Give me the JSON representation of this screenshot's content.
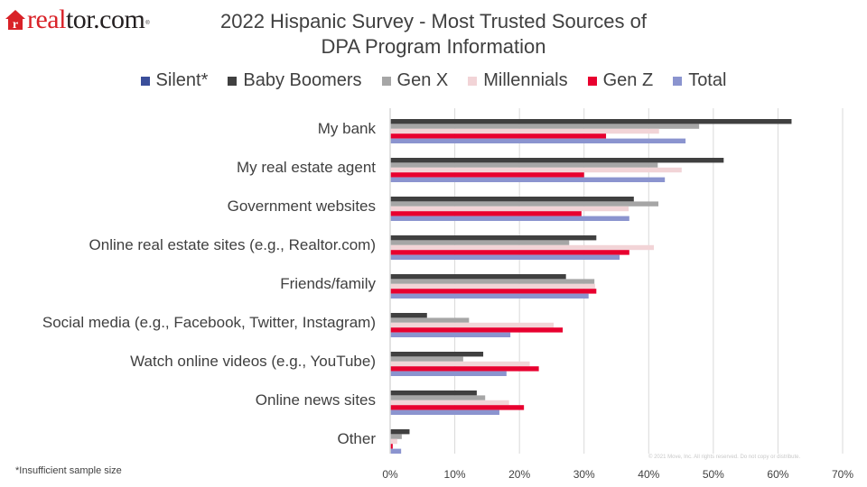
{
  "brand": {
    "logo_red": "real",
    "logo_black": "tor.com",
    "logo_house_letter": "r",
    "logo_color": "#d92228"
  },
  "footnote": "*Insufficient sample size",
  "watermark": "© 2021 Move, Inc. All rights reserved. Do not copy or distribute.",
  "chart_data": {
    "type": "bar",
    "orientation": "horizontal",
    "title": "2022 Hispanic Survey - Most Trusted Sources of DPA Program Information",
    "title_lines": [
      "2022 Hispanic Survey - Most Trusted Sources of",
      "DPA Program Information"
    ],
    "xlabel": "",
    "ylabel": "",
    "xlim": [
      0,
      70
    ],
    "x_ticks": [
      0,
      10,
      20,
      30,
      40,
      50,
      60,
      70
    ],
    "x_tick_labels": [
      "0%",
      "10%",
      "20%",
      "30%",
      "40%",
      "50%",
      "60%",
      "70%"
    ],
    "grid": true,
    "legend_position": "top",
    "categories": [
      "My bank",
      "My real estate agent",
      "Government websites",
      "Online real estate sites (e.g., Realtor.com)",
      "Friends/family",
      "Social media (e.g., Facebook, Twitter, Instagram)",
      "Watch online videos (e.g., YouTube)",
      "Online news sites",
      "Other"
    ],
    "series": [
      {
        "name": "Silent*",
        "color": "#3a4e9a",
        "values": [
          null,
          null,
          null,
          null,
          null,
          null,
          null,
          null,
          null
        ]
      },
      {
        "name": "Baby Boomers",
        "color": "#404040",
        "values": [
          62.1,
          51.6,
          37.7,
          31.9,
          27.2,
          5.7,
          14.4,
          13.4,
          3.0
        ]
      },
      {
        "name": "Gen X",
        "color": "#a6a6a6",
        "values": [
          47.8,
          41.4,
          41.5,
          27.7,
          31.6,
          12.2,
          11.3,
          14.7,
          1.8
        ]
      },
      {
        "name": "Millennials",
        "color": "#f2d4d7",
        "values": [
          41.6,
          45.1,
          36.9,
          40.8,
          31.7,
          25.3,
          21.6,
          18.4,
          1.1
        ]
      },
      {
        "name": "Gen Z",
        "color": "#e8002f",
        "values": [
          33.4,
          30.0,
          29.6,
          37.0,
          31.9,
          26.7,
          23.0,
          20.7,
          0.4
        ]
      },
      {
        "name": "Total",
        "color": "#8b94cf",
        "values": [
          45.7,
          42.5,
          37.0,
          35.5,
          30.7,
          18.6,
          18.0,
          16.9,
          1.7
        ]
      }
    ]
  }
}
